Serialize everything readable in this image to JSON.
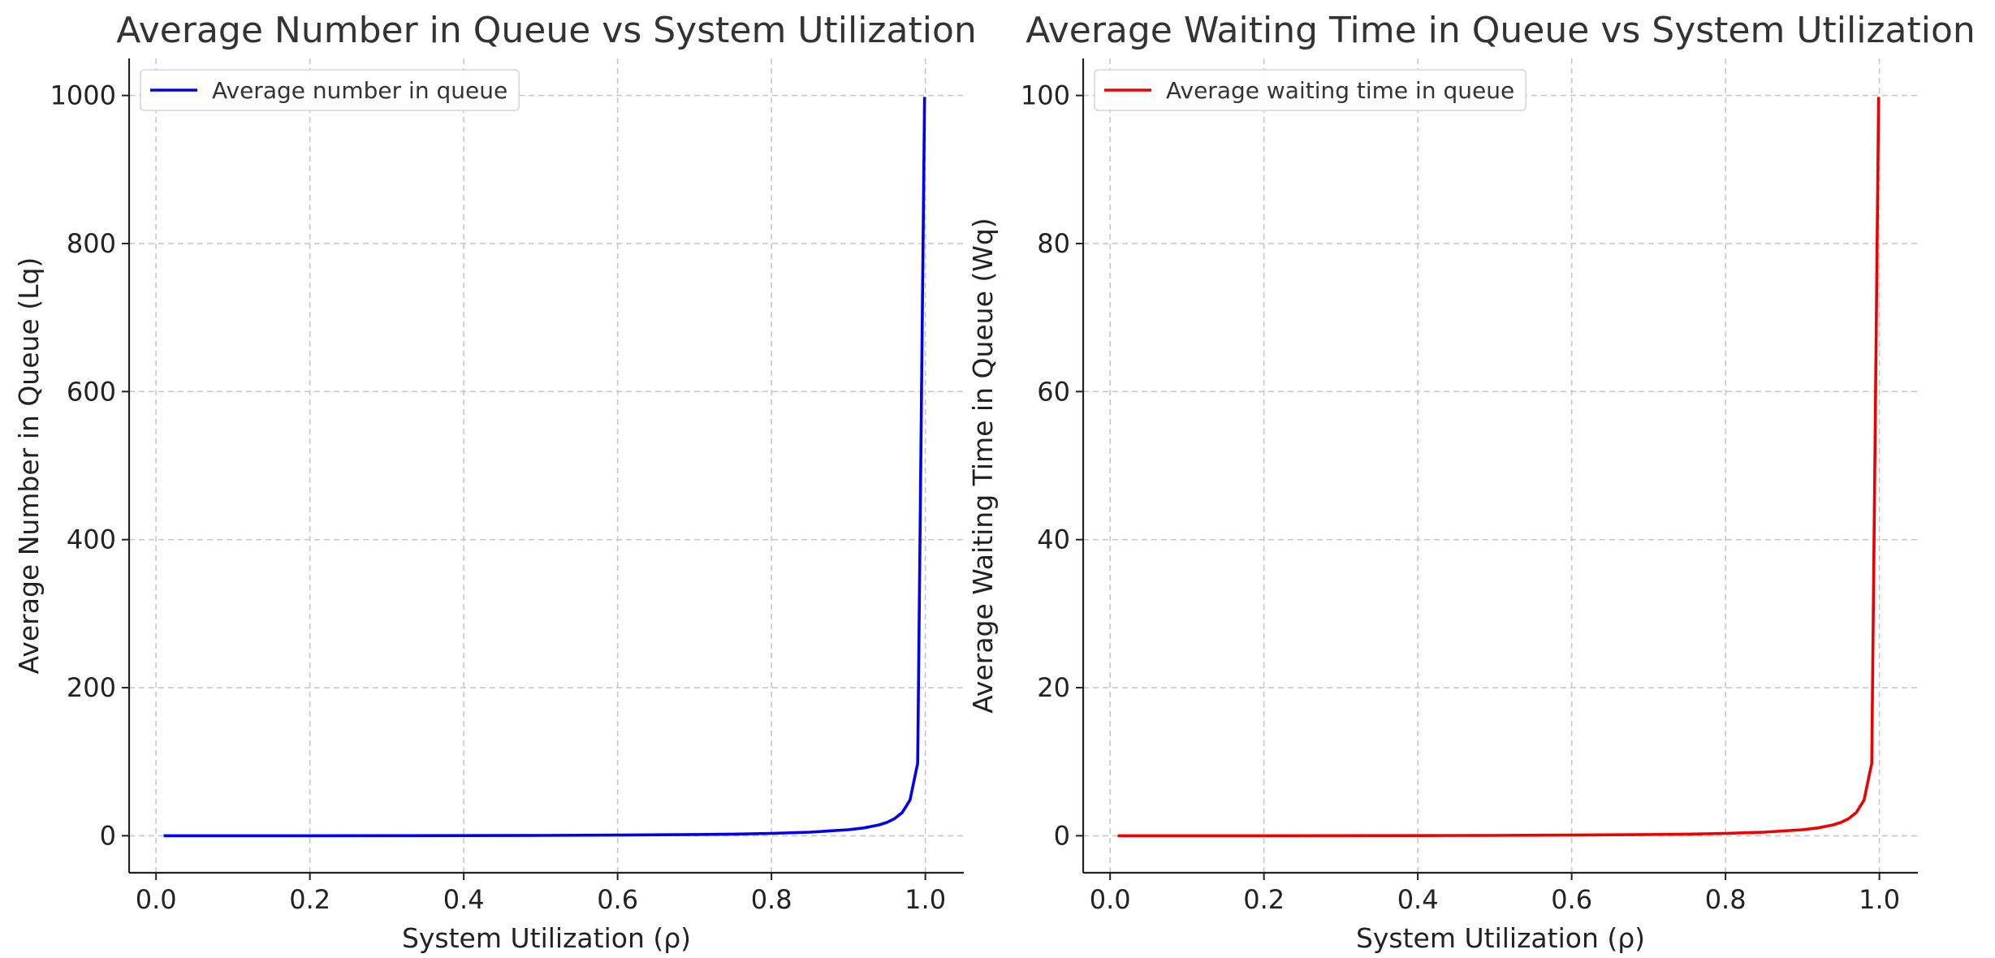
{
  "chart_data": [
    {
      "type": "line",
      "title": "Average Number in Queue vs System Utilization",
      "xlabel": "System Utilization (ρ)",
      "ylabel": "Average Number in Queue (Lq)",
      "xlim": [
        -0.035,
        1.05
      ],
      "ylim": [
        -50,
        1050
      ],
      "x_ticks": [
        0.0,
        0.2,
        0.4,
        0.6,
        0.8,
        1.0
      ],
      "x_tick_labels": [
        "0.0",
        "0.2",
        "0.4",
        "0.6",
        "0.8",
        "1.0"
      ],
      "y_ticks": [
        0,
        200,
        400,
        600,
        800,
        1000
      ],
      "y_tick_labels": [
        "0",
        "200",
        "400",
        "600",
        "800",
        "1000"
      ],
      "grid": true,
      "legend_position": "top-left",
      "series": [
        {
          "name": "Average number in queue",
          "color": "#0000ee",
          "x": [
            0.01,
            0.1,
            0.2,
            0.3,
            0.4,
            0.5,
            0.6,
            0.7,
            0.75,
            0.8,
            0.85,
            0.9,
            0.92,
            0.94,
            0.95,
            0.96,
            0.97,
            0.98,
            0.99,
            0.999
          ],
          "y": [
            0.0001,
            0.011,
            0.05,
            0.129,
            0.267,
            0.5,
            0.9,
            1.633,
            2.25,
            3.2,
            4.817,
            8.1,
            10.58,
            14.73,
            18.05,
            23.04,
            31.36,
            48.02,
            98.01,
            998.0
          ]
        }
      ]
    },
    {
      "type": "line",
      "title": "Average Waiting Time in Queue vs System Utilization",
      "xlabel": "System Utilization (ρ)",
      "ylabel": "Average Waiting Time in Queue (Wq)",
      "xlim": [
        -0.035,
        1.05
      ],
      "ylim": [
        -5,
        105
      ],
      "x_ticks": [
        0.0,
        0.2,
        0.4,
        0.6,
        0.8,
        1.0
      ],
      "x_tick_labels": [
        "0.0",
        "0.2",
        "0.4",
        "0.6",
        "0.8",
        "1.0"
      ],
      "y_ticks": [
        0,
        20,
        40,
        60,
        80,
        100
      ],
      "y_tick_labels": [
        "0",
        "20",
        "40",
        "60",
        "80",
        "100"
      ],
      "grid": true,
      "legend_position": "top-left",
      "series": [
        {
          "name": "Average waiting time in queue",
          "color": "#ee0000",
          "x": [
            0.01,
            0.1,
            0.2,
            0.3,
            0.4,
            0.5,
            0.6,
            0.7,
            0.75,
            0.8,
            0.85,
            0.9,
            0.92,
            0.94,
            0.95,
            0.96,
            0.97,
            0.98,
            0.99,
            0.999
          ],
          "y": [
            1e-05,
            0.0011,
            0.005,
            0.0129,
            0.0267,
            0.05,
            0.09,
            0.163,
            0.225,
            0.32,
            0.482,
            0.81,
            1.058,
            1.473,
            1.805,
            2.304,
            3.136,
            4.802,
            9.801,
            99.8
          ]
        }
      ]
    }
  ]
}
